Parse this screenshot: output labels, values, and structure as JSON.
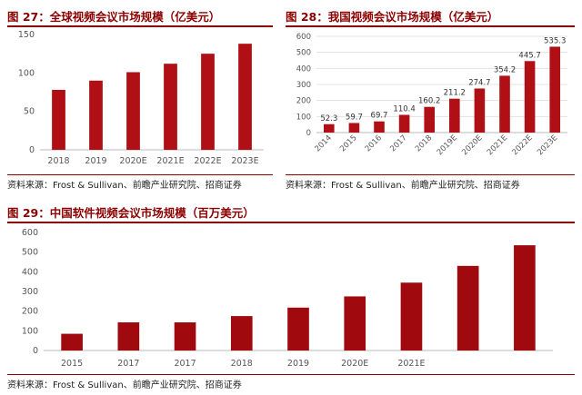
{
  "chart_data": [
    {
      "type": "bar",
      "title": "图 27：全球视频会议市场规模（亿美元）",
      "categories": [
        "2018",
        "2019",
        "2020E",
        "2021E",
        "2022E",
        "2023E"
      ],
      "values": [
        78,
        90,
        101,
        112,
        125,
        138
      ],
      "ylim": [
        0,
        150
      ],
      "yticks": [
        0,
        50,
        100,
        150
      ],
      "grid": false,
      "source": "资料来源：Frost & Sullivan、前瞻产业研究院、招商证券",
      "bar_color": "#b01015"
    },
    {
      "type": "bar",
      "title": "图 28：我国视频会议市场规模（亿美元）",
      "categories": [
        "2014",
        "2015",
        "2016",
        "2017",
        "2018",
        "2019E",
        "2020E",
        "2021E",
        "2022E",
        "2023E"
      ],
      "values": [
        52.3,
        59.7,
        69.7,
        110.4,
        160.2,
        211.2,
        274.7,
        354.2,
        445.7,
        535.3
      ],
      "ylim": [
        0,
        600
      ],
      "yticks": [
        0,
        100,
        200,
        300,
        400,
        500,
        600
      ],
      "grid": true,
      "data_labels": true,
      "source": "资料来源：Frost & Sullivan、前瞻产业研究院、招商证券",
      "bar_color": "#b01015"
    },
    {
      "type": "bar",
      "title": "图 29：中国软件视频会议市场规模（百万美元）",
      "categories": [
        "2015",
        "2017",
        "2017",
        "2018",
        "2019",
        "2020E",
        "2021E",
        "",
        ""
      ],
      "values": [
        85,
        143,
        143,
        175,
        218,
        275,
        345,
        430,
        535
      ],
      "ylim": [
        0,
        600
      ],
      "yticks": [
        0,
        100,
        200,
        300,
        400,
        500,
        600
      ],
      "grid": false,
      "source": "资料来源：Frost & Sullivan、前瞻产业研究院、招商证券",
      "bar_color": "#a00a0f"
    }
  ]
}
